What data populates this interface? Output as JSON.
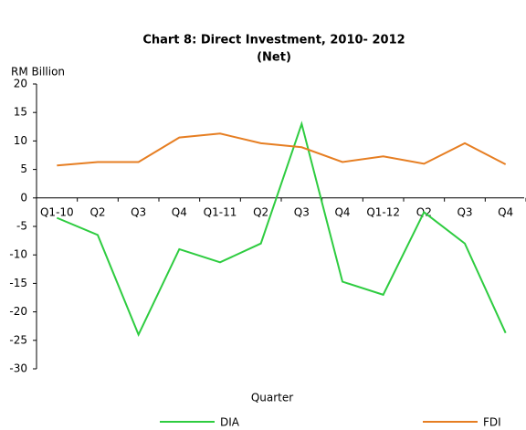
{
  "chart_data": {
    "type": "line",
    "title": [
      "Chart 8: Direct Investment, 2010- 2012",
      "(Net)"
    ],
    "y_axis_label": "RM Billion",
    "x_axis_label": "Quarter",
    "categories": [
      "Q1-10",
      "Q2",
      "Q3",
      "Q4",
      "Q1-11",
      "Q2",
      "Q3",
      "Q4",
      "Q1-12",
      "Q2",
      "Q3",
      "Q4"
    ],
    "series": [
      {
        "name": "DIA",
        "color": "#2ecc40",
        "values": [
          -3.5,
          -6.5,
          -24,
          -9,
          -11.3,
          -8,
          13,
          -14.7,
          -17,
          -2.5,
          -8,
          -23.7
        ]
      },
      {
        "name": "FDI",
        "color": "#e67e22",
        "values": [
          5.7,
          6.3,
          6.3,
          10.6,
          11.3,
          9.6,
          8.9,
          6.3,
          7.3,
          6,
          9.6,
          5.9
        ]
      }
    ],
    "ylim": [
      -30,
      20
    ],
    "yticks": [
      -30,
      -25,
      -20,
      -15,
      -10,
      -5,
      0,
      5,
      10,
      15,
      20
    ],
    "legend": "bottom"
  }
}
